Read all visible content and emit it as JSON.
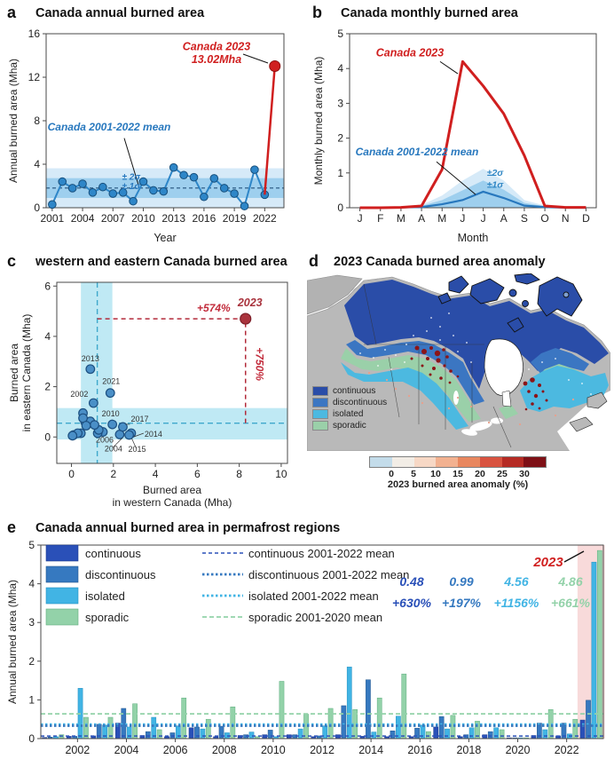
{
  "panels": {
    "a": {
      "label": "a",
      "title": "Canada annual burned area"
    },
    "b": {
      "label": "b",
      "title": "Canada monthly burned area"
    },
    "c": {
      "label": "c",
      "title": "western and eastern Canada burned area"
    },
    "d": {
      "label": "d",
      "title": "2023 Canada burned area anomaly",
      "legend": [
        {
          "name": "continuous",
          "color": "#2a4da8"
        },
        {
          "name": "discontinuous",
          "color": "#3b76c2"
        },
        {
          "name": "isolated",
          "color": "#4cb9e0"
        },
        {
          "name": "sporadic",
          "color": "#9ad0a9"
        }
      ],
      "colorbar": {
        "ticks": [
          "0",
          "5",
          "10",
          "15",
          "20",
          "25",
          "30"
        ],
        "label": "2023 burned area anomaly (%)",
        "colors": [
          "#c3dcea",
          "#f2ede6",
          "#f7d8c5",
          "#f2b190",
          "#e8875f",
          "#d85340",
          "#b52b24",
          "#7e1016"
        ]
      }
    },
    "e": {
      "label": "e",
      "title": "Canada annual burned area in permafrost regions"
    }
  },
  "chart_data": [
    {
      "panel": "a",
      "type": "line",
      "title": "Canada annual burned area",
      "xlabel": "Year",
      "ylabel": "Annual burned area (Mha)",
      "ylim": [
        0,
        16
      ],
      "yticks": [
        0,
        4,
        8,
        12,
        16
      ],
      "xticks": [
        2001,
        2004,
        2007,
        2010,
        2013,
        2016,
        2019,
        2022
      ],
      "years": [
        2001,
        2002,
        2003,
        2004,
        2005,
        2006,
        2007,
        2008,
        2009,
        2010,
        2011,
        2012,
        2013,
        2014,
        2015,
        2016,
        2017,
        2018,
        2019,
        2020,
        2021,
        2022,
        2023
      ],
      "values": [
        0.3,
        2.4,
        1.8,
        2.2,
        1.4,
        1.9,
        1.3,
        1.4,
        0.6,
        2.4,
        1.6,
        1.5,
        3.7,
        3.0,
        2.8,
        1.0,
        2.7,
        1.8,
        1.3,
        0.15,
        3.5,
        1.2,
        13.02
      ],
      "mean": 1.81,
      "sigma": 0.91,
      "annotations": {
        "point_line1": "Canada 2023",
        "point_line2": "13.02Mha",
        "mean_label": "Canada 2001-2022 mean",
        "sigma2": "± 2σ",
        "sigma1": "± 1σ"
      },
      "colors": {
        "series": "#2e86c8",
        "series_edge": "#174f7c",
        "red": "#d01f1f",
        "band1": "#9ecfee",
        "band2": "#d6eaf8",
        "mean_line": "#23527c"
      }
    },
    {
      "panel": "b",
      "type": "line",
      "title": "Canada monthly burned area",
      "xlabel": "Month",
      "ylabel": "Monthly burned area (Mha)",
      "ylim": [
        0,
        5
      ],
      "yticks": [
        0,
        1,
        2,
        3,
        4,
        5
      ],
      "months": [
        "J",
        "F",
        "M",
        "A",
        "M",
        "J",
        "J",
        "A",
        "S",
        "O",
        "N",
        "D"
      ],
      "canada_2023": [
        0,
        0,
        0.01,
        0.05,
        1.1,
        4.2,
        3.5,
        2.7,
        1.5,
        0.05,
        0.01,
        0.01
      ],
      "mean_2001_2022": [
        0,
        0,
        0.01,
        0.02,
        0.1,
        0.22,
        0.46,
        0.28,
        0.06,
        0.02,
        0,
        0
      ],
      "sigma1_upper": [
        0,
        0,
        0.01,
        0.05,
        0.22,
        0.5,
        0.78,
        0.52,
        0.14,
        0.04,
        0,
        0
      ],
      "sigma2_upper": [
        0,
        0,
        0.02,
        0.08,
        0.35,
        0.78,
        1.12,
        0.78,
        0.22,
        0.06,
        0,
        0
      ],
      "annotations": {
        "red_label": "Canada 2023",
        "mean_label": "Canada 2001-2022 mean",
        "sigma2": "±2σ",
        "sigma1": "±1σ"
      },
      "colors": {
        "mean": "#2878be",
        "red": "#d01f1f",
        "band1": "#9ecfee",
        "band2": "#d6eaf8"
      }
    },
    {
      "panel": "c",
      "type": "scatter",
      "title": "western and eastern Canada burned area",
      "xlabel_line1": "Burned area",
      "xlabel_line2": "in western Canada (Mha)",
      "ylabel_line1": "Burned area",
      "ylabel_line2": "in eastern Canada (Mha)",
      "xlim": [
        0,
        10
      ],
      "ylim": [
        0,
        6
      ],
      "xticks": [
        0,
        2,
        4,
        6,
        8,
        10
      ],
      "yticks": [
        0,
        2,
        4,
        6
      ],
      "points": [
        {
          "year": 2001,
          "x": 0.1,
          "y": 0.08
        },
        {
          "year": 2002,
          "x": 1.05,
          "y": 1.35,
          "labeled": true
        },
        {
          "year": 2003,
          "x": 0.55,
          "y": 0.95
        },
        {
          "year": 2004,
          "x": 2.3,
          "y": 0.1,
          "labeled": true
        },
        {
          "year": 2005,
          "x": 0.85,
          "y": 0.55
        },
        {
          "year": 2006,
          "x": 1.5,
          "y": 0.2,
          "labeled": true
        },
        {
          "year": 2007,
          "x": 0.65,
          "y": 0.6
        },
        {
          "year": 2008,
          "x": 1.25,
          "y": 0.15
        },
        {
          "year": 2009,
          "x": 0.45,
          "y": 0.15
        },
        {
          "year": 2010,
          "x": 1.95,
          "y": 0.5,
          "labeled": true
        },
        {
          "year": 2011,
          "x": 0.9,
          "y": 0.62
        },
        {
          "year": 2012,
          "x": 1.3,
          "y": 0.28
        },
        {
          "year": 2013,
          "x": 0.9,
          "y": 2.7,
          "labeled": true
        },
        {
          "year": 2014,
          "x": 2.85,
          "y": 0.15,
          "labeled": true
        },
        {
          "year": 2015,
          "x": 2.75,
          "y": 0.08,
          "labeled": true
        },
        {
          "year": 2016,
          "x": 0.3,
          "y": 0.15
        },
        {
          "year": 2017,
          "x": 2.45,
          "y": 0.4,
          "labeled": true
        },
        {
          "year": 2018,
          "x": 1.1,
          "y": 0.48
        },
        {
          "year": 2019,
          "x": 0.55,
          "y": 0.75
        },
        {
          "year": 2020,
          "x": 0.05,
          "y": 0.05
        },
        {
          "year": 2021,
          "x": 1.85,
          "y": 1.75,
          "labeled": true
        },
        {
          "year": 2022,
          "x": 0.7,
          "y": 0.45
        }
      ],
      "point_2023": {
        "year": 2023,
        "x": 8.3,
        "y": 4.7
      },
      "mean_x": 1.23,
      "mean_y": 0.55,
      "band_x": [
        0.45,
        1.95
      ],
      "band_y": [
        -0.1,
        1.15
      ],
      "annotations": {
        "h_pct": "+574%",
        "v_pct": "+750%",
        "label_2023": "2023"
      },
      "colors": {
        "point": "#4a8fc7",
        "point_edge": "#1c4f80",
        "red": "#b22a3a",
        "dark_red": "#a9333d",
        "band": "#bfe9f4",
        "mean_dash": "#3fa8cc"
      }
    },
    {
      "panel": "e",
      "type": "bar",
      "title": "Canada annual burned area in permafrost regions",
      "ylabel": "Annual burned area (Mha)",
      "ylim": [
        0,
        5
      ],
      "yticks": [
        0,
        1,
        2,
        3,
        4,
        5
      ],
      "years": [
        2001,
        2002,
        2003,
        2004,
        2005,
        2006,
        2007,
        2008,
        2009,
        2010,
        2011,
        2012,
        2013,
        2014,
        2015,
        2016,
        2017,
        2018,
        2019,
        2020,
        2021,
        2022,
        2023
      ],
      "xticklabels": [
        2002,
        2004,
        2006,
        2008,
        2010,
        2012,
        2014,
        2016,
        2018,
        2020,
        2022
      ],
      "series": [
        {
          "name": "continuous",
          "color": "#2a50b8",
          "edge": "#1b3a8c",
          "mean": 0.066,
          "mean_label": "continuous 2001-2022 mean",
          "values": [
            0.03,
            0.06,
            0.07,
            0.4,
            0.08,
            0.05,
            0.28,
            0.05,
            0.08,
            0.1,
            0.1,
            0.05,
            0.1,
            0.06,
            0.05,
            0.05,
            0.3,
            0.05,
            0.1,
            0.02,
            0.08,
            0.07,
            0.48
          ]
        },
        {
          "name": "discontinuous",
          "color": "#3679c0",
          "edge": "#24588e",
          "mean": 0.333,
          "mean_label": "discontinuous 2001-2022 mean",
          "values": [
            0.04,
            0.06,
            0.37,
            0.78,
            0.18,
            0.15,
            0.3,
            0.32,
            0.1,
            0.22,
            0.1,
            0.07,
            0.85,
            1.52,
            0.2,
            0.27,
            0.57,
            0.1,
            0.18,
            0.02,
            0.4,
            0.4,
            0.99
          ]
        },
        {
          "name": "isolated",
          "color": "#41b4e4",
          "edge": "#2590c0",
          "mean": 0.363,
          "mean_label": "isolated 2001-2022 mean",
          "values": [
            0.05,
            1.3,
            0.35,
            0.3,
            0.55,
            0.33,
            0.25,
            0.15,
            0.17,
            0.05,
            0.25,
            0.33,
            1.85,
            0.17,
            0.58,
            0.35,
            0.25,
            0.28,
            0.28,
            0.02,
            0.23,
            0.12,
            4.56
          ]
        },
        {
          "name": "sporadic",
          "color": "#93d2a9",
          "edge": "#5fae7f",
          "mean": 0.639,
          "mean_label": "sporadic 2001-2020 mean",
          "values": [
            0.1,
            0.55,
            0.55,
            0.9,
            0.23,
            1.05,
            0.5,
            0.82,
            0.05,
            1.48,
            0.63,
            0.78,
            0.75,
            1.05,
            1.67,
            0.18,
            0.6,
            0.45,
            0.23,
            0.02,
            0.75,
            0.5,
            4.86
          ]
        }
      ],
      "stats": {
        "values": [
          "0.48",
          "0.99",
          "4.56",
          "4.86"
        ],
        "pcts": [
          "+630%",
          "+197%",
          "+1156%",
          "+661%"
        ]
      },
      "highlight_year": 2023,
      "annotations": {
        "label_2023": "2023"
      },
      "colors": {
        "highlight": "#f8dada",
        "red": "#d01f1f"
      }
    }
  ]
}
